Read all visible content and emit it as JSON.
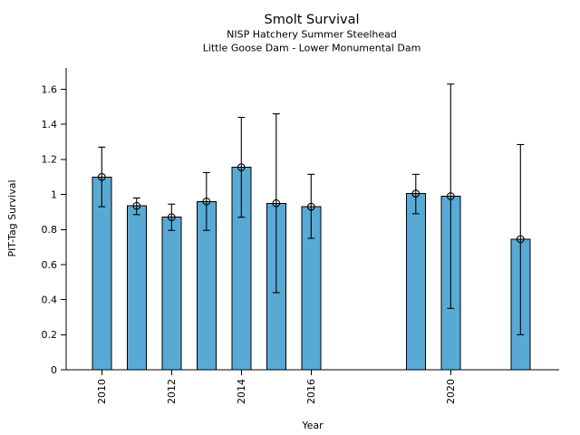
{
  "chart_data": {
    "type": "bar",
    "title": "Smolt Survival",
    "subtitle1": "NISP Hatchery Summer Steelhead",
    "subtitle2": "Little Goose Dam - Lower Monumental Dam",
    "xlabel": "Year",
    "ylabel": "PIT-Tag Survival",
    "bar_color": "#58aad5",
    "edge_color": "#000000",
    "marker": "open-circle",
    "error_bars": true,
    "grid": false,
    "legend": null,
    "xlim": [
      2008.98,
      2023.11
    ],
    "ylim": [
      0,
      1.72
    ],
    "x_tick_years": [
      "2010",
      "2012",
      "2014",
      "2016",
      "2020"
    ],
    "y_tick_values": [
      0,
      0.2,
      0.4,
      0.6,
      0.8,
      1.0,
      1.2,
      1.4,
      1.6
    ],
    "y_tick_labels": [
      "0",
      "0.2",
      "0.4",
      "0.6",
      "0.8",
      "1",
      "1.2",
      "1.4",
      "1.6"
    ],
    "bars": [
      {
        "year": 2010,
        "value": 1.1,
        "ci_low": 0.93,
        "ci_high": 1.27
      },
      {
        "year": 2011,
        "value": 0.935,
        "ci_low": 0.885,
        "ci_high": 0.98
      },
      {
        "year": 2012,
        "value": 0.87,
        "ci_low": 0.795,
        "ci_high": 0.945
      },
      {
        "year": 2013,
        "value": 0.96,
        "ci_low": 0.795,
        "ci_high": 1.125
      },
      {
        "year": 2014,
        "value": 1.155,
        "ci_low": 0.87,
        "ci_high": 1.44
      },
      {
        "year": 2015,
        "value": 0.95,
        "ci_low": 0.44,
        "ci_high": 1.46
      },
      {
        "year": 2016,
        "value": 0.93,
        "ci_low": 0.75,
        "ci_high": 1.115
      },
      {
        "year": 2019,
        "value": 1.005,
        "ci_low": 0.89,
        "ci_high": 1.115
      },
      {
        "year": 2020,
        "value": 0.99,
        "ci_low": 0.35,
        "ci_high": 1.63
      },
      {
        "year": 2022,
        "value": 0.745,
        "ci_low": 0.2,
        "ci_high": 1.285
      }
    ]
  }
}
